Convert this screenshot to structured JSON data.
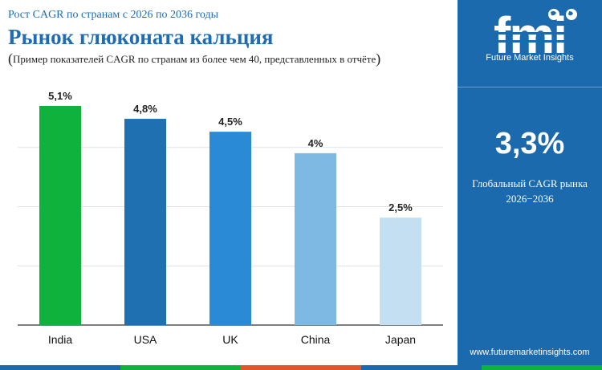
{
  "header": {
    "subtitle": "Рост CAGR по странам с 2026 по 2036 годы",
    "title": "Рынок глюконата кальция",
    "note_open": "(",
    "note": "Пример показателей CAGR по странам из более чем 40, представленных в отчёте",
    "note_close": ")"
  },
  "chart_data": {
    "type": "bar",
    "categories": [
      "India",
      "USA",
      "UK",
      "China",
      "Japan"
    ],
    "values": [
      5.1,
      4.8,
      4.5,
      4.0,
      2.5
    ],
    "value_labels": [
      "5,1%",
      "4,8%",
      "4,5%",
      "4%",
      "2,5%"
    ],
    "colors": [
      "#10b23e",
      "#1f70b0",
      "#2a8ad6",
      "#7db9e2",
      "#c3dff1"
    ],
    "ylim": [
      0,
      5.1
    ],
    "grid": true,
    "legend": "none"
  },
  "panel": {
    "logo_letters": "fmi",
    "logo_text": "Future Market Insights",
    "big_value": "3,3%",
    "caption_line1": "Глобальный CAGR рынка",
    "caption_line2": "2026−2036",
    "website": "www.futuremarketinsights.com"
  },
  "colors": {
    "brand_blue": "#1a6aad",
    "title_blue": "#1f6bb4",
    "stripe": [
      "#1a6aad",
      "#10b23e",
      "#e0562a",
      "#1a6aad",
      "#10b23e"
    ]
  }
}
